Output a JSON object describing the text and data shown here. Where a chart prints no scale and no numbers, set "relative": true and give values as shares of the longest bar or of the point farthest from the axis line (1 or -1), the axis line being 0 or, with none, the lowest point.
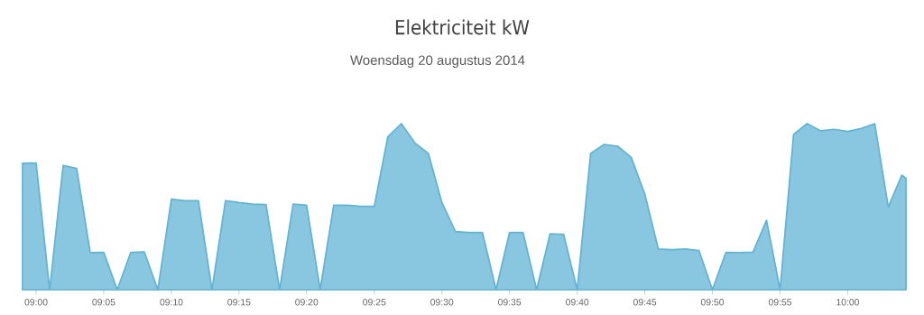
{
  "chart_data": {
    "type": "area",
    "title": "Elektriciteit kW",
    "subtitle": "Woensdag 20 augustus 2014",
    "relative": true,
    "color": "#62b3d4",
    "x": [
      8.9833,
      9,
      9.0167,
      9.0333,
      9.05,
      9.0667,
      9.0833,
      9.1,
      9.1167,
      9.1333,
      9.15,
      9.1667,
      9.1833,
      9.2,
      9.2167,
      9.2333,
      9.25,
      9.2667,
      9.2833,
      9.3,
      9.3167,
      9.3333,
      9.35,
      9.3667,
      9.3833,
      9.4,
      9.4167,
      9.4333,
      9.45,
      9.4667,
      9.4833,
      9.5,
      9.5167,
      9.5333,
      9.55,
      9.5667,
      9.5833,
      9.6,
      9.6167,
      9.6333,
      9.65,
      9.6667,
      9.6833,
      9.7,
      9.7167,
      9.7333,
      9.75,
      9.7667,
      9.7833,
      9.8,
      9.8167,
      9.8333,
      9.85,
      9.8667,
      9.8833,
      9.9,
      9.9167,
      9.9333,
      9.95,
      9.9667,
      9.9833,
      10,
      10.0167,
      10.0333,
      10.05,
      10.0667,
      10.0718
    ],
    "values": [
      0.761,
      0.763,
      0,
      0.748,
      0.73,
      0.223,
      0.225,
      0,
      0.225,
      0.228,
      0,
      0.545,
      0.536,
      0.536,
      0,
      0.536,
      0.525,
      0.516,
      0.513,
      0,
      0.516,
      0.509,
      0,
      0.509,
      0.509,
      0.502,
      0.502,
      0.92,
      1,
      0.884,
      0.821,
      0.525,
      0.35,
      0.344,
      0.344,
      0,
      0.344,
      0.344,
      0,
      0.337,
      0.333,
      0,
      0.821,
      0.875,
      0.864,
      0.797,
      0.576,
      0.245,
      0.241,
      0.245,
      0.236,
      0,
      0.225,
      0.223,
      0.226,
      0.418,
      0,
      0.935,
      1,
      0.957,
      0.966,
      0.953,
      0.971,
      1,
      0.498,
      0.69,
      0.672
    ],
    "xlim": [
      8.9833,
      10.0718
    ],
    "xticks": [
      {
        "value": 9,
        "label": "09:00"
      },
      {
        "value": 9.0833,
        "label": "09:05"
      },
      {
        "value": 9.1667,
        "label": "09:10"
      },
      {
        "value": 9.25,
        "label": "09:15"
      },
      {
        "value": 9.3333,
        "label": "09:20"
      },
      {
        "value": 9.4167,
        "label": "09:25"
      },
      {
        "value": 9.5,
        "label": "09:30"
      },
      {
        "value": 9.5833,
        "label": "09:35"
      },
      {
        "value": 9.6667,
        "label": "09:40"
      },
      {
        "value": 9.75,
        "label": "09:45"
      },
      {
        "value": 9.8333,
        "label": "09:50"
      },
      {
        "value": 9.9167,
        "label": "09:55"
      },
      {
        "value": 10,
        "label": "10:00"
      }
    ],
    "tick_labels": "x"
  }
}
